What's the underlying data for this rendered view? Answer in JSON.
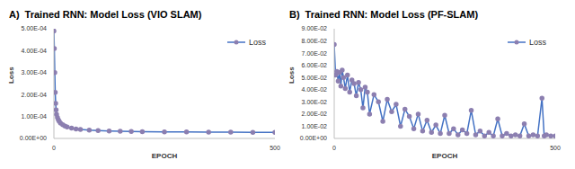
{
  "chart_data": [
    {
      "type": "line",
      "panel_label": "A)",
      "title": "Trained RNN: Model Loss (VIO SLAM)",
      "xlabel": "EPOCH",
      "ylabel": "Loss",
      "x": [
        0,
        1,
        2,
        3,
        4,
        5,
        6,
        8,
        10,
        12,
        15,
        20,
        25,
        30,
        40,
        50,
        60,
        80,
        100,
        125,
        150,
        175,
        200,
        250,
        300,
        350,
        400,
        450,
        500
      ],
      "series": [
        {
          "name": "Loss",
          "color": "#4472c4",
          "marker": "circle",
          "values": [
            0.00049,
            0.00041,
            0.0003,
            0.00021,
            0.00016,
            0.00013,
            0.00011,
            9.5e-05,
            8.5e-05,
            7.8e-05,
            7e-05,
            6.2e-05,
            5.6e-05,
            5.2e-05,
            4.7e-05,
            4.3e-05,
            4.1e-05,
            3.8e-05,
            3.6e-05,
            3.4e-05,
            3.3e-05,
            3.2e-05,
            3.1e-05,
            3e-05,
            2.95e-05,
            2.9e-05,
            2.85e-05,
            2.8e-05,
            2.8e-05
          ]
        }
      ],
      "xlim": [
        0,
        500
      ],
      "xticks": [
        0,
        500
      ],
      "ylim": [
        0,
        0.0005
      ],
      "yticks": [
        {
          "value": 0,
          "label": "0.00E+00"
        },
        {
          "value": 0.0001,
          "label": "1.00E-04"
        },
        {
          "value": 0.0002,
          "label": "2.00E-04"
        },
        {
          "value": 0.0003,
          "label": "3.00E-04"
        },
        {
          "value": 0.0004,
          "label": "4.00E-04"
        },
        {
          "value": 0.0005,
          "label": "5.00E-04"
        }
      ],
      "grid": false,
      "legend": "top-right"
    },
    {
      "type": "line",
      "panel_label": "B)",
      "title": "Trained RNN: Model Loss (PF-SLAM)",
      "xlabel": "EPOCH",
      "ylabel": "Loss",
      "x": [
        0,
        3,
        6,
        9,
        12,
        15,
        18,
        21,
        25,
        30,
        35,
        40,
        45,
        50,
        55,
        60,
        65,
        70,
        75,
        80,
        90,
        100,
        110,
        120,
        130,
        140,
        150,
        160,
        170,
        180,
        190,
        200,
        210,
        220,
        230,
        240,
        250,
        260,
        270,
        280,
        290,
        300,
        310,
        320,
        330,
        340,
        350,
        360,
        370,
        380,
        390,
        400,
        410,
        420,
        430,
        440,
        450,
        460,
        470,
        475,
        480,
        490,
        500
      ],
      "series": [
        {
          "name": "Loss",
          "color": "#4472c4",
          "marker": "circle",
          "values": [
            0.077,
            0.052,
            0.055,
            0.047,
            0.054,
            0.043,
            0.056,
            0.05,
            0.041,
            0.052,
            0.038,
            0.048,
            0.045,
            0.035,
            0.046,
            0.04,
            0.025,
            0.042,
            0.038,
            0.02,
            0.036,
            0.03,
            0.014,
            0.032,
            0.022,
            0.028,
            0.01,
            0.024,
            0.018,
            0.008,
            0.02,
            0.006,
            0.015,
            0.005,
            0.011,
            0.004,
            0.019,
            0.004,
            0.008,
            0.003,
            0.007,
            0.004,
            0.023,
            0.003,
            0.006,
            0.002,
            0.005,
            0.002,
            0.016,
            0.002,
            0.004,
            0.002,
            0.003,
            0.002,
            0.012,
            0.002,
            0.003,
            0.002,
            0.033,
            0.002,
            0.003,
            0.002,
            0.002
          ]
        }
      ],
      "xlim": [
        0,
        500
      ],
      "xticks": [
        0,
        500
      ],
      "ylim": [
        0,
        0.09
      ],
      "yticks": [
        {
          "value": 0,
          "label": "0.00E+00"
        },
        {
          "value": 0.01,
          "label": "1.00E-02"
        },
        {
          "value": 0.02,
          "label": "2.00E-02"
        },
        {
          "value": 0.03,
          "label": "3.00E-02"
        },
        {
          "value": 0.04,
          "label": "4.00E-02"
        },
        {
          "value": 0.05,
          "label": "5.00E-02"
        },
        {
          "value": 0.06,
          "label": "6.00E-02"
        },
        {
          "value": 0.07,
          "label": "7.00E-02"
        },
        {
          "value": 0.08,
          "label": "8.00E-02"
        },
        {
          "value": 0.09,
          "label": "9.00E-02"
        }
      ],
      "grid": false,
      "legend": "top-right"
    }
  ]
}
